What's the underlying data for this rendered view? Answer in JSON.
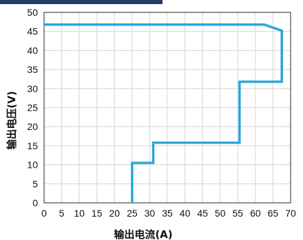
{
  "chart_data": {
    "type": "line",
    "xlabel": "输出电流(A)",
    "ylabel": "输出电压(V)",
    "xlim": [
      0,
      70
    ],
    "ylim": [
      0,
      50
    ],
    "xticks": [
      0,
      5,
      10,
      15,
      20,
      25,
      30,
      35,
      40,
      45,
      50,
      55,
      60,
      65,
      70
    ],
    "yticks": [
      0,
      5,
      10,
      15,
      20,
      25,
      30,
      35,
      40,
      45,
      50
    ],
    "grid": true,
    "line_color": "#2aa7dd",
    "series": [
      {
        "x": [
          25,
          25,
          31,
          31,
          55.5,
          55.5,
          67.5,
          67.5,
          65,
          62.5,
          0
        ],
        "y": [
          0,
          10.5,
          10.5,
          15.8,
          15.8,
          31.8,
          31.8,
          45.2,
          46,
          46.8,
          46.8
        ]
      }
    ]
  }
}
